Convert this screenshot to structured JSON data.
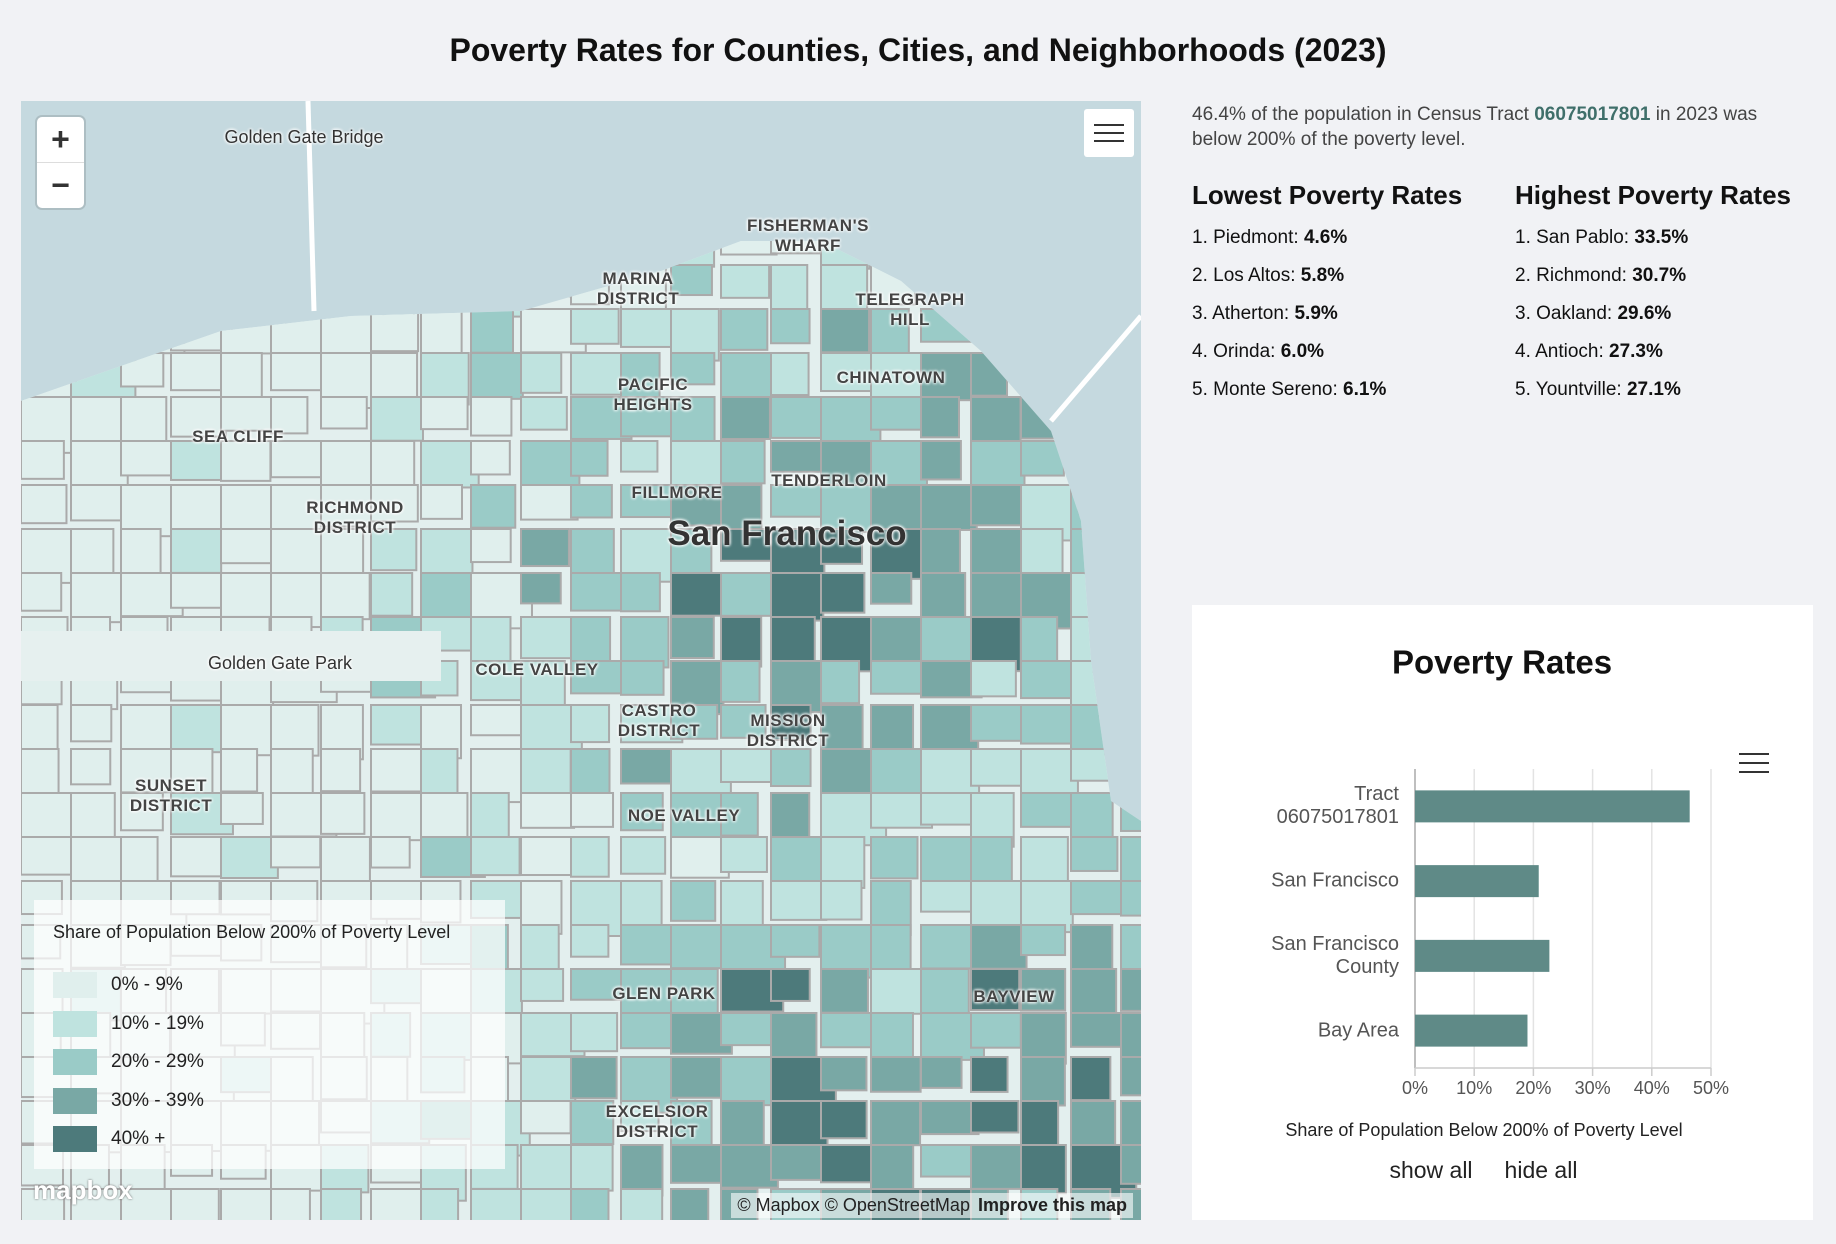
{
  "header": {
    "title": "Poverty Rates for Counties, Cities, and Neighborhoods (2023)"
  },
  "summary": {
    "before": "46.4% of the population in Census Tract",
    "tract": "06075017801",
    "after": "in 2023 was below 200% of the poverty level."
  },
  "rankings": {
    "lowest": {
      "heading": "Lowest Poverty Rates",
      "items": [
        {
          "label": "1. Piedmont:",
          "value": "4.6%"
        },
        {
          "label": "2. Los Altos:",
          "value": "5.8%"
        },
        {
          "label": "3. Atherton:",
          "value": "5.9%"
        },
        {
          "label": "4. Orinda:",
          "value": "6.0%"
        },
        {
          "label": "5. Monte Sereno:",
          "value": "6.1%"
        }
      ]
    },
    "highest": {
      "heading": "Highest Poverty Rates",
      "items": [
        {
          "label": "1. San Pablo:",
          "value": "33.5%"
        },
        {
          "label": "2. Richmond:",
          "value": "30.7%"
        },
        {
          "label": "3. Oakland:",
          "value": "29.6%"
        },
        {
          "label": "4. Antioch:",
          "value": "27.3%"
        },
        {
          "label": "5. Yountville:",
          "value": "27.1%"
        }
      ]
    }
  },
  "map": {
    "zoom_in": "+",
    "zoom_out": "−",
    "labels": [
      "Golden Gate Bridge",
      "FISHERMAN'S WHARF",
      "MARINA DISTRICT",
      "TELEGRAPH HILL",
      "PACIFIC HEIGHTS",
      "CHINATOWN",
      "SEA CLIFF",
      "RICHMOND DISTRICT",
      "FILLMORE",
      "TENDERLOIN",
      "San Francisco",
      "Golden Gate Park",
      "COLE VALLEY",
      "CASTRO DISTRICT",
      "MISSION DISTRICT",
      "SUNSET DISTRICT",
      "NOE VALLEY",
      "GLEN PARK",
      "BAYVIEW",
      "EXCELSIOR DISTRICT"
    ],
    "legend": {
      "title": "Share of Population Below 200% of Poverty Level",
      "items": [
        {
          "label": "0% - 9%",
          "color": "#e0efed"
        },
        {
          "label": "10% - 19%",
          "color": "#bfe3df"
        },
        {
          "label": "20% - 29%",
          "color": "#9acbc7"
        },
        {
          "label": "30% - 39%",
          "color": "#79a8a5"
        },
        {
          "label": "40% +",
          "color": "#4d7a7b"
        }
      ]
    },
    "logo": "mapbox",
    "attribution": "© Mapbox © OpenStreetMap",
    "improve": "Improve this map"
  },
  "chart_data": {
    "type": "bar",
    "orientation": "horizontal",
    "title": "Poverty Rates",
    "x_label": "Share of Population Below 200% of Poverty Level",
    "categories": [
      "Tract 06075017801",
      "San Francisco",
      "San Francisco County",
      "Bay Area"
    ],
    "values": [
      46.4,
      20.9,
      22.7,
      19.0
    ],
    "color": "#5f8a87",
    "xlim": [
      0,
      50
    ],
    "xticks": [
      {
        "value": 0,
        "label": "0%"
      },
      {
        "value": 10,
        "label": "10%"
      },
      {
        "value": 20,
        "label": "20%"
      },
      {
        "value": 30,
        "label": "30%"
      },
      {
        "value": 40,
        "label": "40%"
      },
      {
        "value": 50,
        "label": "50%"
      }
    ],
    "grid": true
  },
  "controls": {
    "show_all": "show all",
    "hide_all": "hide all"
  }
}
